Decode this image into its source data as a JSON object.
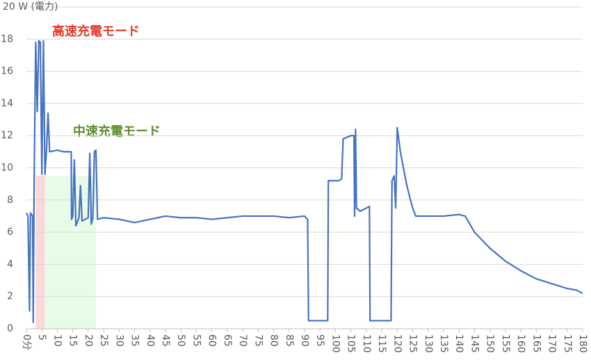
{
  "chart_data": {
    "type": "line",
    "x": [
      0,
      0.5,
      1,
      1.3,
      2,
      2.2,
      2.5,
      3,
      3.5,
      4,
      4.5,
      5,
      5.5,
      6,
      6.5,
      7,
      7.5,
      10,
      12,
      14,
      14.5,
      14.6,
      15,
      15.5,
      16,
      17,
      17.5,
      18,
      19,
      20,
      20.5,
      21,
      21.5,
      22,
      22.5,
      23,
      25,
      30,
      35,
      40,
      45,
      50,
      55,
      60,
      65,
      70,
      75,
      80,
      85,
      90,
      91,
      91.3,
      95,
      97.5,
      97.7,
      98,
      101,
      102,
      102.5,
      105,
      106,
      106.2,
      106.5,
      106.8,
      108,
      110,
      111,
      111.2,
      118,
      118.3,
      119,
      119.5,
      120,
      121,
      122,
      123,
      124,
      125,
      126,
      128,
      130,
      135,
      140,
      142,
      145,
      150,
      155,
      160,
      165,
      170,
      175,
      178,
      180
    ],
    "series": [
      {
        "color": "#4472c4",
        "values": [
          7.2,
          7,
          1.1,
          7.2,
          7,
          0.4,
          9.2,
          17.8,
          13.5,
          17.9,
          17.8,
          9.6,
          17.9,
          9.6,
          11.1,
          13.4,
          11,
          11.1,
          11,
          11,
          11,
          6.8,
          7,
          10.5,
          6.4,
          6.9,
          8.9,
          6.7,
          6.8,
          6.9,
          10.9,
          6.5,
          6.9,
          11,
          11.1,
          6.8,
          6.9,
          6.8,
          6.6,
          6.8,
          7,
          6.9,
          6.9,
          6.8,
          6.9,
          7,
          7,
          7,
          6.9,
          7,
          6.8,
          0.5,
          0.5,
          0.5,
          9.2,
          9.2,
          9.2,
          9.3,
          11.8,
          12,
          12,
          7,
          12.4,
          7.5,
          7.3,
          7.5,
          7.6,
          0.5,
          0.5,
          9.2,
          9.5,
          7.5,
          12.5,
          11,
          10,
          9,
          8.2,
          7.5,
          7,
          7,
          7,
          7,
          7.1,
          7,
          6,
          5,
          4.2,
          3.6,
          3.1,
          2.8,
          2.5,
          2.4,
          2.2
        ]
      }
    ],
    "regions": [
      {
        "label": "高速充電モード",
        "x": [
          3,
          6
        ],
        "color": "#fbd9d9",
        "label_color": "#e8392b"
      },
      {
        "label": "中速充電モード",
        "x": [
          6,
          22.5
        ],
        "color": "#e8fbe6",
        "label_color": "#5b8c2a"
      }
    ],
    "xlim": [
      0,
      180
    ],
    "ylim": [
      0,
      20
    ],
    "xticks": [
      {
        "value": 0,
        "label": "0分"
      },
      5,
      10,
      15,
      20,
      25,
      30,
      35,
      40,
      45,
      50,
      55,
      60,
      65,
      70,
      75,
      80,
      85,
      90,
      95,
      100,
      105,
      110,
      115,
      120,
      125,
      130,
      135,
      140,
      145,
      150,
      155,
      160,
      165,
      170,
      175,
      180
    ],
    "yticks": [
      0,
      2,
      4,
      6,
      8,
      10,
      12,
      14,
      16,
      18,
      {
        "value": 20,
        "label": "20 W (電力)"
      }
    ],
    "grid": true
  }
}
